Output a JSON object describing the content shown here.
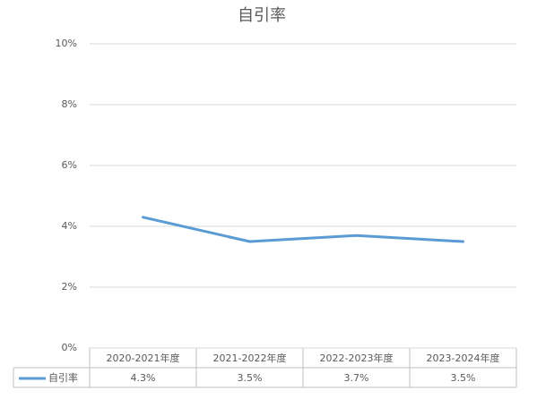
{
  "chart_data": {
    "type": "line",
    "title": "自引率",
    "categories": [
      "2020-2021年度",
      "2021-2022年度",
      "2022-2023年度",
      "2023-2024年度"
    ],
    "series": [
      {
        "name": "自引率",
        "color": "#5b9bd5",
        "values": [
          4.3,
          3.5,
          3.7,
          3.5
        ],
        "value_labels": [
          "4.3%",
          "3.5%",
          "3.7%",
          "3.5%"
        ]
      }
    ],
    "ylim": [
      0,
      10
    ],
    "yticks": [
      {
        "value": 0,
        "label": "0%"
      },
      {
        "value": 2,
        "label": "2%"
      },
      {
        "value": 4,
        "label": "4%"
      },
      {
        "value": 6,
        "label": "6%"
      },
      {
        "value": 8,
        "label": "8%"
      },
      {
        "value": 10,
        "label": "10%"
      }
    ],
    "grid": true
  }
}
